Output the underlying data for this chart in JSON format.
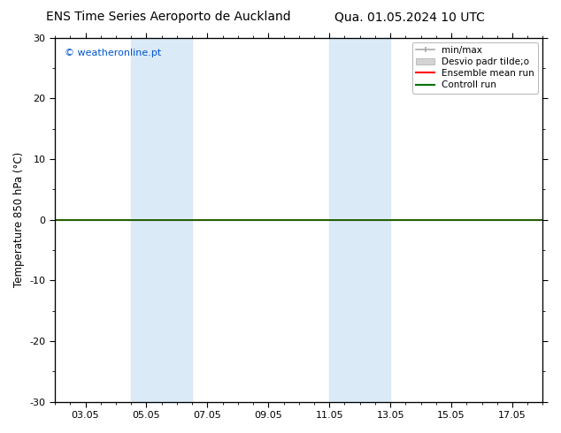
{
  "title_left": "ENS Time Series Aeroporto de Auckland",
  "title_right": "Qua. 01.05.2024 10 UTC",
  "ylabel": "Temperature 850 hPa (°C)",
  "xlabel": "",
  "ylim": [
    -30,
    30
  ],
  "yticks": [
    -30,
    -20,
    -10,
    0,
    10,
    20,
    30
  ],
  "xtick_labels": [
    "03.05",
    "05.05",
    "07.05",
    "09.05",
    "11.05",
    "13.05",
    "15.05",
    "17.05"
  ],
  "xtick_positions": [
    3,
    5,
    7,
    9,
    11,
    13,
    15,
    17
  ],
  "xlim": [
    2,
    18
  ],
  "watermark": "© weatheronline.pt",
  "watermark_color": "#0055cc",
  "bg_color": "#ffffff",
  "plot_bg_color": "#ffffff",
  "shaded_bands": [
    {
      "xmin": 4.5,
      "xmax": 6.5,
      "color": "#daeaf7"
    },
    {
      "xmin": 11.0,
      "xmax": 13.0,
      "color": "#daeaf7"
    }
  ],
  "zero_line_color": "#000000",
  "ensemble_mean_color": "#ff0000",
  "control_run_color": "#007000",
  "minmax_color": "#aaaaaa",
  "stddev_color": "#cccccc",
  "legend_entries": [
    {
      "label": "min/max",
      "color": "#aaaaaa",
      "lw": 1.2,
      "type": "line"
    },
    {
      "label": "Desvio padr tilde;o",
      "color": "#cccccc",
      "lw": 6,
      "type": "band"
    },
    {
      "label": "Ensemble mean run",
      "color": "#ff0000",
      "lw": 1.5,
      "type": "line"
    },
    {
      "label": "Controll run",
      "color": "#007000",
      "lw": 1.5,
      "type": "line"
    }
  ],
  "spine_color": "#000000",
  "tick_color": "#000000",
  "title_fontsize": 10,
  "label_fontsize": 8.5,
  "tick_fontsize": 8,
  "legend_fontsize": 7.5
}
